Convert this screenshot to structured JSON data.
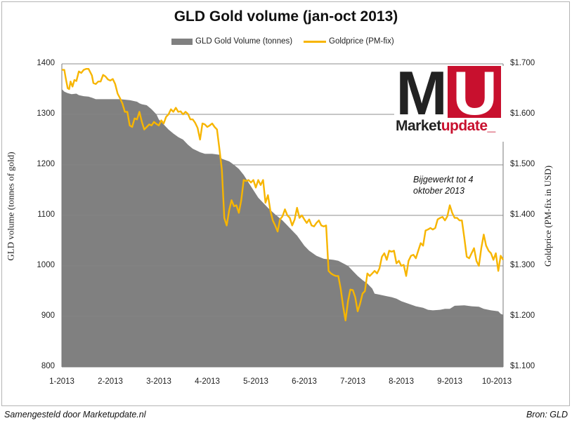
{
  "chart_data": {
    "type": "area+line",
    "title": "GLD Gold volume (jan-oct 2013)",
    "legend": [
      "GLD Gold Volume (tonnes)",
      "Goldprice (PM-fix)"
    ],
    "legend_position": "top",
    "ylabel_left": "GLD volume (tonnes of gold)",
    "ylabel_right": "Goldprice (PM-fix in USD)",
    "ylim_left": [
      800,
      1400
    ],
    "ylim_right": [
      1100,
      1700
    ],
    "yticks_left": [
      "800",
      "900",
      "1000",
      "1100",
      "1200",
      "1300",
      "1400"
    ],
    "yticks_right": [
      "$1.100",
      "$1.200",
      "$1.300",
      "$1.400",
      "$1.500",
      "$1.600",
      "$1.700"
    ],
    "xtick_labels": [
      "1-2013",
      "2-2013",
      "3-2013",
      "4-2013",
      "5-2013",
      "6-2013",
      "7-2013",
      "8-2013",
      "9-2013",
      "10-2013"
    ],
    "x_range_months": [
      0,
      9.1
    ],
    "grid": "horizontal",
    "series": [
      {
        "name": "GLD Gold Volume (tonnes)",
        "axis": "left",
        "color": "#808080",
        "points": [
          [
            0.0,
            1350
          ],
          [
            0.05,
            1345
          ],
          [
            0.12,
            1342
          ],
          [
            0.2,
            1340
          ],
          [
            0.3,
            1341
          ],
          [
            0.35,
            1338
          ],
          [
            0.45,
            1336
          ],
          [
            0.55,
            1335
          ],
          [
            0.62,
            1333
          ],
          [
            0.7,
            1330
          ],
          [
            0.8,
            1330
          ],
          [
            1.0,
            1330
          ],
          [
            1.2,
            1330
          ],
          [
            1.4,
            1328
          ],
          [
            1.55,
            1325
          ],
          [
            1.6,
            1322
          ],
          [
            1.65,
            1320
          ],
          [
            1.75,
            1318
          ],
          [
            1.85,
            1310
          ],
          [
            1.95,
            1300
          ],
          [
            2.0,
            1290
          ],
          [
            2.1,
            1280
          ],
          [
            2.2,
            1270
          ],
          [
            2.3,
            1262
          ],
          [
            2.4,
            1255
          ],
          [
            2.5,
            1250
          ],
          [
            2.6,
            1240
          ],
          [
            2.7,
            1232
          ],
          [
            2.85,
            1225
          ],
          [
            2.95,
            1222
          ],
          [
            3.1,
            1222
          ],
          [
            3.25,
            1220
          ],
          [
            3.3,
            1212
          ],
          [
            3.45,
            1207
          ],
          [
            3.55,
            1200
          ],
          [
            3.65,
            1192
          ],
          [
            3.75,
            1180
          ],
          [
            3.85,
            1165
          ],
          [
            3.95,
            1150
          ],
          [
            4.05,
            1135
          ],
          [
            4.15,
            1125
          ],
          [
            4.25,
            1115
          ],
          [
            4.4,
            1102
          ],
          [
            4.55,
            1090
          ],
          [
            4.65,
            1080
          ],
          [
            4.75,
            1070
          ],
          [
            4.85,
            1060
          ],
          [
            5.0,
            1040
          ],
          [
            5.1,
            1030
          ],
          [
            5.25,
            1020
          ],
          [
            5.4,
            1014
          ],
          [
            5.6,
            1012
          ],
          [
            5.7,
            1010
          ],
          [
            5.8,
            1005
          ],
          [
            5.9,
            1000
          ],
          [
            6.0,
            990
          ],
          [
            6.1,
            980
          ],
          [
            6.2,
            972
          ],
          [
            6.3,
            965
          ],
          [
            6.4,
            955
          ],
          [
            6.45,
            945
          ],
          [
            6.55,
            943
          ],
          [
            6.7,
            940
          ],
          [
            6.8,
            938
          ],
          [
            6.9,
            935
          ],
          [
            7.0,
            930
          ],
          [
            7.15,
            925
          ],
          [
            7.3,
            920
          ],
          [
            7.45,
            917
          ],
          [
            7.55,
            913
          ],
          [
            7.65,
            912
          ],
          [
            7.8,
            913
          ],
          [
            7.9,
            915
          ],
          [
            8.0,
            915
          ],
          [
            8.1,
            921
          ],
          [
            8.3,
            922
          ],
          [
            8.45,
            920
          ],
          [
            8.6,
            919
          ],
          [
            8.7,
            915
          ],
          [
            8.85,
            912
          ],
          [
            9.0,
            910
          ],
          [
            9.05,
            905
          ],
          [
            9.1,
            903
          ]
        ]
      },
      {
        "name": "Goldprice (PM-fix)",
        "axis": "right",
        "color": "#f7b500",
        "points": [
          [
            0.0,
            1688
          ],
          [
            0.05,
            1688
          ],
          [
            0.08,
            1672
          ],
          [
            0.12,
            1652
          ],
          [
            0.15,
            1650
          ],
          [
            0.18,
            1665
          ],
          [
            0.22,
            1655
          ],
          [
            0.26,
            1668
          ],
          [
            0.3,
            1666
          ],
          [
            0.35,
            1685
          ],
          [
            0.4,
            1682
          ],
          [
            0.45,
            1688
          ],
          [
            0.5,
            1690
          ],
          [
            0.55,
            1690
          ],
          [
            0.62,
            1677
          ],
          [
            0.65,
            1662
          ],
          [
            0.7,
            1660
          ],
          [
            0.75,
            1665
          ],
          [
            0.8,
            1665
          ],
          [
            0.85,
            1678
          ],
          [
            0.9,
            1675
          ],
          [
            0.95,
            1669
          ],
          [
            1.0,
            1667
          ],
          [
            1.05,
            1670
          ],
          [
            1.1,
            1660
          ],
          [
            1.15,
            1641
          ],
          [
            1.2,
            1632
          ],
          [
            1.25,
            1621
          ],
          [
            1.3,
            1605
          ],
          [
            1.35,
            1605
          ],
          [
            1.4,
            1578
          ],
          [
            1.45,
            1575
          ],
          [
            1.5,
            1592
          ],
          [
            1.55,
            1590
          ],
          [
            1.6,
            1605
          ],
          [
            1.65,
            1585
          ],
          [
            1.7,
            1570
          ],
          [
            1.75,
            1575
          ],
          [
            1.8,
            1580
          ],
          [
            1.85,
            1578
          ],
          [
            1.9,
            1585
          ],
          [
            1.95,
            1581
          ],
          [
            2.0,
            1578
          ],
          [
            2.05,
            1588
          ],
          [
            2.1,
            1582
          ],
          [
            2.15,
            1595
          ],
          [
            2.2,
            1600
          ],
          [
            2.25,
            1610
          ],
          [
            2.3,
            1605
          ],
          [
            2.35,
            1613
          ],
          [
            2.4,
            1605
          ],
          [
            2.45,
            1606
          ],
          [
            2.5,
            1600
          ],
          [
            2.55,
            1605
          ],
          [
            2.6,
            1601
          ],
          [
            2.65,
            1590
          ],
          [
            2.7,
            1590
          ],
          [
            2.75,
            1583
          ],
          [
            2.8,
            1573
          ],
          [
            2.85,
            1550
          ],
          [
            2.9,
            1582
          ],
          [
            2.95,
            1580
          ],
          [
            3.0,
            1575
          ],
          [
            3.05,
            1578
          ],
          [
            3.1,
            1582
          ],
          [
            3.15,
            1575
          ],
          [
            3.2,
            1570
          ],
          [
            3.25,
            1531
          ],
          [
            3.3,
            1491
          ],
          [
            3.35,
            1395
          ],
          [
            3.4,
            1380
          ],
          [
            3.45,
            1410
          ],
          [
            3.5,
            1430
          ],
          [
            3.55,
            1418
          ],
          [
            3.6,
            1420
          ],
          [
            3.65,
            1405
          ],
          [
            3.7,
            1430
          ],
          [
            3.75,
            1470
          ],
          [
            3.8,
            1468
          ],
          [
            3.85,
            1470
          ],
          [
            3.9,
            1465
          ],
          [
            3.95,
            1470
          ],
          [
            4.0,
            1455
          ],
          [
            4.05,
            1470
          ],
          [
            4.1,
            1460
          ],
          [
            4.15,
            1470
          ],
          [
            4.2,
            1425
          ],
          [
            4.25,
            1440
          ],
          [
            4.3,
            1410
          ],
          [
            4.35,
            1390
          ],
          [
            4.4,
            1380
          ],
          [
            4.45,
            1368
          ],
          [
            4.5,
            1392
          ],
          [
            4.55,
            1398
          ],
          [
            4.6,
            1412
          ],
          [
            4.65,
            1400
          ],
          [
            4.7,
            1395
          ],
          [
            4.75,
            1380
          ],
          [
            4.8,
            1392
          ],
          [
            4.85,
            1415
          ],
          [
            4.9,
            1395
          ],
          [
            4.95,
            1400
          ],
          [
            5.0,
            1392
          ],
          [
            5.05,
            1385
          ],
          [
            5.1,
            1392
          ],
          [
            5.15,
            1380
          ],
          [
            5.2,
            1378
          ],
          [
            5.25,
            1385
          ],
          [
            5.3,
            1390
          ],
          [
            5.35,
            1380
          ],
          [
            5.4,
            1378
          ],
          [
            5.45,
            1380
          ],
          [
            5.5,
            1290
          ],
          [
            5.55,
            1285
          ],
          [
            5.6,
            1282
          ],
          [
            5.65,
            1280
          ],
          [
            5.7,
            1280
          ],
          [
            5.75,
            1255
          ],
          [
            5.8,
            1220
          ],
          [
            5.85,
            1192
          ],
          [
            5.9,
            1230
          ],
          [
            5.95,
            1253
          ],
          [
            6.0,
            1252
          ],
          [
            6.05,
            1238
          ],
          [
            6.1,
            1210
          ],
          [
            6.15,
            1225
          ],
          [
            6.2,
            1245
          ],
          [
            6.25,
            1250
          ],
          [
            6.3,
            1285
          ],
          [
            6.35,
            1280
          ],
          [
            6.4,
            1285
          ],
          [
            6.45,
            1290
          ],
          [
            6.5,
            1285
          ],
          [
            6.55,
            1295
          ],
          [
            6.6,
            1318
          ],
          [
            6.65,
            1325
          ],
          [
            6.7,
            1312
          ],
          [
            6.75,
            1330
          ],
          [
            6.8,
            1328
          ],
          [
            6.85,
            1330
          ],
          [
            6.9,
            1305
          ],
          [
            6.95,
            1310
          ],
          [
            7.0,
            1300
          ],
          [
            7.05,
            1302
          ],
          [
            7.1,
            1280
          ],
          [
            7.15,
            1310
          ],
          [
            7.2,
            1320
          ],
          [
            7.25,
            1322
          ],
          [
            7.3,
            1315
          ],
          [
            7.35,
            1330
          ],
          [
            7.4,
            1345
          ],
          [
            7.45,
            1340
          ],
          [
            7.5,
            1370
          ],
          [
            7.55,
            1372
          ],
          [
            7.6,
            1375
          ],
          [
            7.65,
            1372
          ],
          [
            7.7,
            1375
          ],
          [
            7.75,
            1392
          ],
          [
            7.8,
            1395
          ],
          [
            7.85,
            1397
          ],
          [
            7.9,
            1390
          ],
          [
            7.95,
            1398
          ],
          [
            8.0,
            1420
          ],
          [
            8.05,
            1405
          ],
          [
            8.1,
            1395
          ],
          [
            8.15,
            1395
          ],
          [
            8.2,
            1390
          ],
          [
            8.25,
            1390
          ],
          [
            8.3,
            1355
          ],
          [
            8.35,
            1318
          ],
          [
            8.4,
            1315
          ],
          [
            8.45,
            1325
          ],
          [
            8.5,
            1335
          ],
          [
            8.55,
            1310
          ],
          [
            8.6,
            1300
          ],
          [
            8.65,
            1335
          ],
          [
            8.7,
            1362
          ],
          [
            8.75,
            1340
          ],
          [
            8.8,
            1330
          ],
          [
            8.85,
            1325
          ],
          [
            8.9,
            1312
          ],
          [
            8.95,
            1325
          ],
          [
            9.0,
            1290
          ],
          [
            9.05,
            1320
          ],
          [
            9.1,
            1312
          ]
        ]
      }
    ],
    "annotation": [
      "Bijgewerkt tot 4",
      "oktober 2013"
    ]
  },
  "logo": {
    "letters_left": "M",
    "letters_right": "U",
    "word_dark": "Market",
    "word_red": "update_"
  },
  "footer": {
    "left": "Samengesteld door Marketupdate.nl",
    "right": "Bron: GLD"
  },
  "colors": {
    "area": "#808080",
    "line": "#f7b500",
    "grid": "#8c8c8c",
    "brand_red": "#c8102e"
  }
}
